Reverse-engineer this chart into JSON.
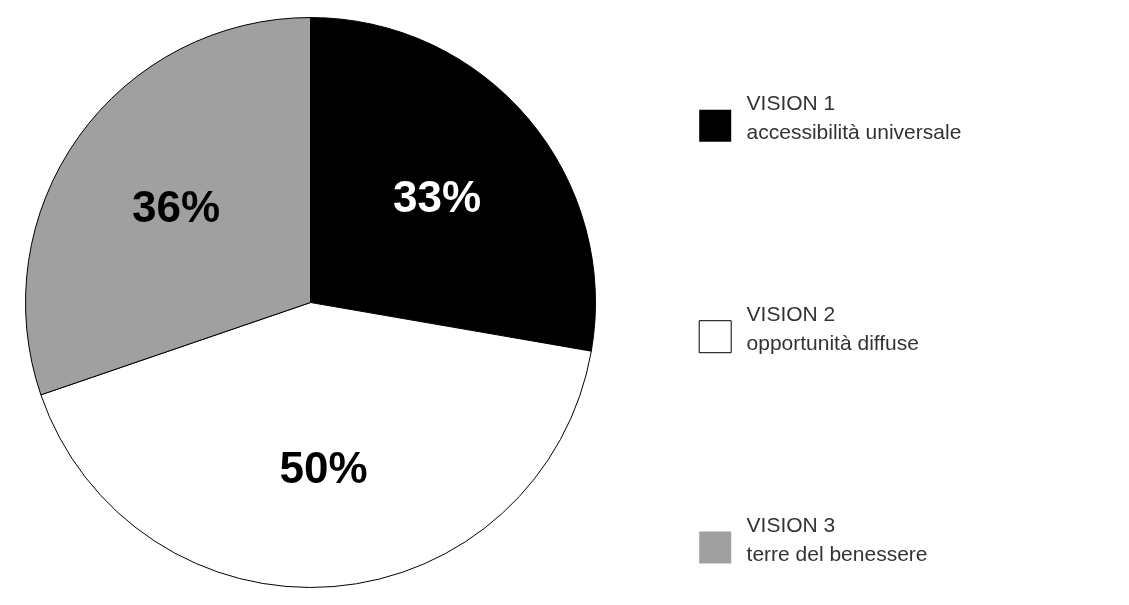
{
  "chart_data": {
    "type": "pie",
    "categories": [
      "VISION 1\naccessibilità universale",
      "VISION 2\nopportunità diffuse",
      "VISION 3\nterre del benessere"
    ],
    "values": [
      33,
      50,
      36
    ],
    "colors": [
      "#000000",
      "#ffffff",
      "#a0a0a0"
    ],
    "value_labels": [
      "33%",
      "50%",
      "36%"
    ],
    "legend": "right"
  }
}
